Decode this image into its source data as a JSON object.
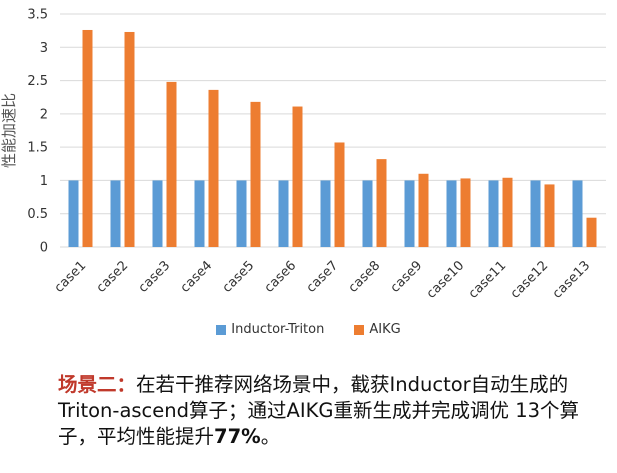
{
  "chart_data": {
    "type": "bar",
    "title": "",
    "xlabel": "",
    "ylabel": "性能加速比",
    "ylim": [
      0,
      3.5
    ],
    "yticks": [
      "0",
      "0.5",
      "1",
      "1.5",
      "2",
      "2.5",
      "3",
      "3.5"
    ],
    "grid": true,
    "legend_position": "bottom",
    "categories": [
      "case1",
      "case2",
      "case3",
      "case4",
      "case5",
      "case6",
      "case7",
      "case8",
      "case9",
      "case10",
      "case11",
      "case12",
      "case13"
    ],
    "series": [
      {
        "name": "Inductor-Triton",
        "color": "#5b9bd5",
        "values": [
          1,
          1,
          1,
          1,
          1,
          1,
          1,
          1,
          1,
          1,
          1,
          1,
          1
        ]
      },
      {
        "name": "AIKG",
        "color": "#ed7d31",
        "values": [
          3.26,
          3.23,
          2.48,
          2.36,
          2.18,
          2.11,
          1.57,
          1.32,
          1.1,
          1.03,
          1.04,
          0.94,
          0.44
        ]
      }
    ]
  },
  "caption": {
    "label": "场景二：",
    "text1": "在若干推荐网络场景中，截获Inductor自动生成的Triton-ascend算子；通过AIKG重新生成并完成调优 13个算子，平均性能提升",
    "percent": "77%",
    "end": "。"
  }
}
